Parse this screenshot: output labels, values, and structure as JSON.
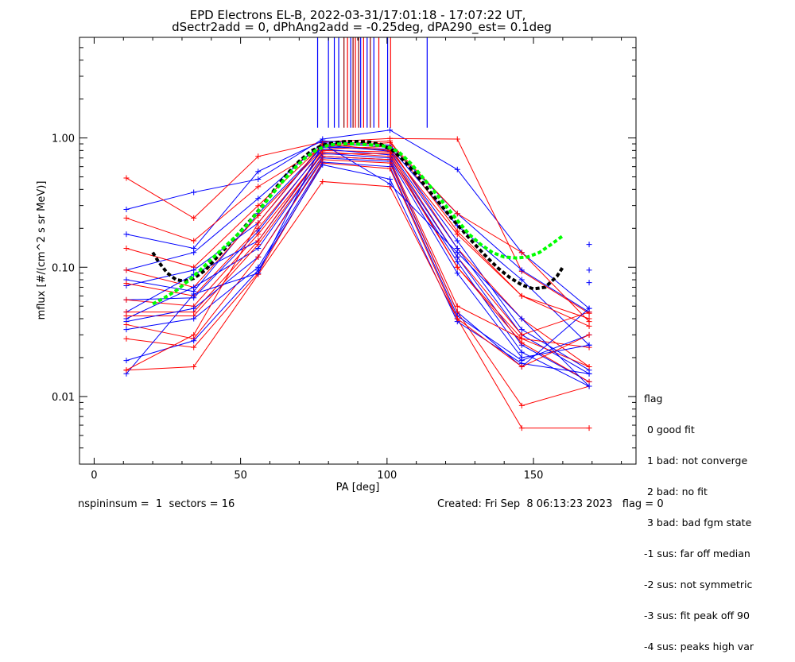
{
  "title": {
    "line1": "EPD Electrons EL-B, 2022-03-31/17:01:18 - 17:07:22 UT,",
    "line2": "dSectr2add = 0, dPhAng2add = -0.25deg, dPA290_est=   0.1deg"
  },
  "footer": {
    "left": "nspininsum =  1  sectors = 16",
    "right": "Created: Fri Sep  8 06:13:23 2023   flag = 0"
  },
  "legend": {
    "title": "flag",
    "items": [
      " 0 good fit",
      " 1 bad: not converge",
      " 2 bad: no fit",
      " 3 bad: bad fgm state",
      "-1 sus: far off median",
      "-2 sus: not symmetric",
      "-3 sus: fit peak off 90",
      "-4 sus: peaks high var"
    ]
  },
  "colors": {
    "blue": "#0000ff",
    "red": "#ff0000",
    "green": "#00ff00",
    "black": "#000000",
    "darkred": "#8b0000"
  },
  "chart_data": {
    "type": "line",
    "xlabel": "PA [deg]",
    "ylabel": "mflux [#/(cm^2 s sr MeV)]",
    "xlim": [
      -5,
      185
    ],
    "ylim": [
      0.003,
      6.0
    ],
    "yscale": "log",
    "xticks": [
      0,
      50,
      100,
      150
    ],
    "yticks": [
      0.01,
      0.1,
      1.0
    ],
    "ytick_labels": [
      "0.01",
      "0.10",
      "1.00"
    ],
    "x": [
      11,
      34,
      56,
      78,
      101,
      124,
      146,
      169
    ],
    "series": [
      {
        "color": "blue",
        "values": [
          0.28,
          0.38,
          0.48,
          0.98,
          1.15,
          0.57,
          0.13,
          0.048
        ]
      },
      {
        "color": "red",
        "values": [
          0.49,
          0.24,
          0.72,
          0.93,
          0.99,
          0.98,
          0.093,
          0.044
        ]
      },
      {
        "color": "blue",
        "values": [
          0.18,
          0.14,
          0.55,
          0.95,
          0.88,
          0.26,
          0.095,
          0.045
        ]
      },
      {
        "color": "red",
        "values": [
          0.24,
          0.16,
          0.42,
          0.85,
          0.92,
          0.26,
          0.13,
          0.038
        ]
      },
      {
        "color": "blue",
        "values": [
          0.095,
          0.13,
          0.34,
          0.92,
          0.85,
          0.21,
          0.08,
          0.025
        ]
      },
      {
        "color": "red",
        "values": [
          0.14,
          0.1,
          0.3,
          0.88,
          0.95,
          0.19,
          0.06,
          0.035
        ]
      },
      {
        "color": "blue",
        "values": [
          0.08,
          0.065,
          0.26,
          0.85,
          0.82,
          0.16,
          0.033,
          0.016
        ]
      },
      {
        "color": "red",
        "values": [
          0.095,
          0.07,
          0.25,
          0.82,
          0.86,
          0.14,
          0.04,
          0.017
        ]
      },
      {
        "color": "blue",
        "values": [
          0.072,
          0.095,
          0.22,
          0.88,
          0.79,
          0.14,
          0.03,
          0.015
        ]
      },
      {
        "color": "red",
        "values": [
          0.075,
          0.06,
          0.2,
          0.8,
          0.78,
          0.12,
          0.03,
          0.045
        ]
      },
      {
        "color": "blue",
        "values": [
          0.056,
          0.058,
          0.19,
          0.82,
          0.74,
          0.12,
          0.025,
          0.013
        ]
      },
      {
        "color": "red",
        "values": [
          0.056,
          0.05,
          0.18,
          0.75,
          0.76,
          0.1,
          0.028,
          0.024
        ]
      },
      {
        "color": "blue",
        "values": [
          0.045,
          0.088,
          0.16,
          0.76,
          0.7,
          0.11,
          0.022,
          0.012
        ]
      },
      {
        "color": "red",
        "values": [
          0.045,
          0.045,
          0.16,
          0.78,
          0.72,
          0.1,
          0.026,
          0.013
        ]
      },
      {
        "color": "blue",
        "values": [
          0.04,
          0.07,
          0.14,
          0.72,
          0.68,
          0.09,
          0.02,
          0.025
        ]
      },
      {
        "color": "red",
        "values": [
          0.042,
          0.042,
          0.15,
          0.72,
          0.68,
          0.05,
          0.028,
          0.017
        ]
      },
      {
        "color": "blue",
        "values": [
          0.038,
          0.048,
          0.12,
          0.7,
          0.66,
          0.045,
          0.017,
          0.048
        ]
      },
      {
        "color": "red",
        "values": [
          0.036,
          0.028,
          0.12,
          0.68,
          0.64,
          0.045,
          0.0085,
          0.012
        ]
      },
      {
        "color": "blue",
        "values": [
          0.033,
          0.04,
          0.1,
          0.65,
          0.6,
          0.042,
          0.019,
          0.03
        ]
      },
      {
        "color": "red",
        "values": [
          0.028,
          0.024,
          0.09,
          0.64,
          0.58,
          0.04,
          0.0057,
          0.0057
        ]
      },
      {
        "color": "blue",
        "values": [
          0.019,
          0.027,
          0.095,
          0.62,
          0.48,
          0.038,
          0.018,
          0.015
        ]
      },
      {
        "color": "red",
        "values": [
          0.016,
          0.017,
          0.088,
          0.46,
          0.42,
          0.04,
          0.017,
          0.03
        ]
      },
      {
        "color": "blue",
        "values": [
          0.015,
          0.062,
          0.09,
          0.9,
          0.44,
          0.13,
          0.04,
          0.012
        ]
      },
      {
        "color": "red",
        "values": [
          0.016,
          0.03,
          0.22,
          0.9,
          0.8,
          0.18,
          0.06,
          0.04
        ]
      }
    ],
    "extra_points": [
      {
        "color": "blue",
        "x": 169,
        "y": 0.15
      },
      {
        "color": "blue",
        "x": 169,
        "y": 0.095
      },
      {
        "color": "blue",
        "x": 169,
        "y": 0.076
      }
    ],
    "vertical_lines": [
      {
        "color": "blue",
        "x": 76.3
      },
      {
        "color": "blue",
        "x": 80.0
      },
      {
        "color": "blue",
        "x": 82.0
      },
      {
        "color": "blue",
        "x": 83.5
      },
      {
        "color": "darkred",
        "x": 85.3
      },
      {
        "color": "red",
        "x": 86.5
      },
      {
        "color": "blue",
        "x": 87.6
      },
      {
        "color": "darkred",
        "x": 88.4
      },
      {
        "color": "red",
        "x": 89.2
      },
      {
        "color": "darkred",
        "x": 90.3
      },
      {
        "color": "blue",
        "x": 91.0
      },
      {
        "color": "red",
        "x": 92.0
      },
      {
        "color": "blue",
        "x": 93.2
      },
      {
        "color": "darkred",
        "x": 94.3
      },
      {
        "color": "blue",
        "x": 95.5
      },
      {
        "color": "red",
        "x": 97.2
      },
      {
        "color": "blue",
        "x": 100.2
      },
      {
        "color": "red",
        "x": 101.2
      },
      {
        "color": "blue",
        "x": 113.7
      }
    ],
    "vertical_line_bottom": 1.2,
    "fits": [
      {
        "color": "black",
        "x": [
          20,
          22,
          25,
          28,
          31,
          34,
          38,
          42,
          46,
          50,
          54,
          58,
          62,
          66,
          70,
          74,
          78,
          82,
          86,
          90,
          94,
          98,
          102,
          106,
          110,
          114,
          118,
          122,
          126,
          130,
          134,
          138,
          142,
          146,
          150,
          154,
          158,
          160
        ],
        "y": [
          0.13,
          0.11,
          0.09,
          0.08,
          0.078,
          0.082,
          0.095,
          0.12,
          0.15,
          0.19,
          0.24,
          0.31,
          0.41,
          0.53,
          0.66,
          0.79,
          0.88,
          0.92,
          0.94,
          0.94,
          0.93,
          0.89,
          0.8,
          0.66,
          0.52,
          0.4,
          0.31,
          0.24,
          0.19,
          0.15,
          0.12,
          0.098,
          0.083,
          0.073,
          0.068,
          0.07,
          0.085,
          0.1
        ]
      },
      {
        "color": "green",
        "x": [
          20,
          24,
          28,
          32,
          36,
          40,
          44,
          48,
          52,
          56,
          60,
          64,
          68,
          72,
          76,
          80,
          84,
          88,
          92,
          96,
          100,
          104,
          108,
          112,
          116,
          120,
          124,
          128,
          132,
          136,
          140,
          144,
          148,
          152,
          156,
          160
        ],
        "y": [
          0.052,
          0.058,
          0.066,
          0.078,
          0.094,
          0.115,
          0.14,
          0.17,
          0.21,
          0.27,
          0.35,
          0.45,
          0.57,
          0.7,
          0.81,
          0.88,
          0.9,
          0.9,
          0.89,
          0.88,
          0.86,
          0.78,
          0.64,
          0.5,
          0.39,
          0.3,
          0.23,
          0.18,
          0.15,
          0.13,
          0.12,
          0.118,
          0.12,
          0.13,
          0.15,
          0.175
        ]
      }
    ]
  }
}
